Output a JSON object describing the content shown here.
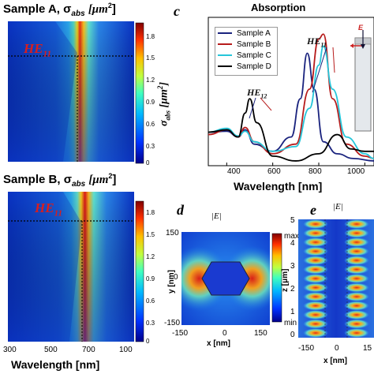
{
  "panel_a": {
    "title": "Sample A, σ",
    "title_sub": "abs",
    "title_unit": "[μm",
    "title_unit_sup": "2",
    "title_unit_close": "]",
    "mode_label": "HE",
    "mode_sub": "11",
    "colorbar_ticks": [
      "1.8",
      "1.5",
      "1.2",
      "0.9",
      "0.6",
      "0.3",
      "0"
    ]
  },
  "panel_b": {
    "title": "Sample B, σ",
    "title_sub": "abs",
    "title_unit": "[μm",
    "title_unit_sup": "2",
    "title_unit_close": "]",
    "mode_label": "HE",
    "mode_sub": "11",
    "colorbar_ticks": [
      "1.8",
      "1.5",
      "1.2",
      "0.9",
      "0.6",
      "0.3",
      "0"
    ],
    "x_ticks": [
      "300",
      "500",
      "700",
      "100"
    ],
    "x_label": "Wavelength [nm]"
  },
  "panel_c": {
    "letter": "c",
    "title": "Absorption",
    "y_label_main": "σ",
    "y_label_sub": "abs",
    "y_label_unit": "[μm",
    "y_label_sup": "2",
    "y_label_close": "]",
    "x_label": "Wavelength [nm]",
    "x_ticks": [
      "400",
      "600",
      "800",
      "1000"
    ],
    "he11": "HE",
    "he11_sub": "11",
    "he12": "HE",
    "he12_sub": "12",
    "e_label": "E"
  },
  "panel_d": {
    "letter": "d",
    "field_label": "|E|",
    "y_label": "y [nm]",
    "y_ticks": [
      "150",
      "0",
      "-150"
    ],
    "x_label": "x [nm]",
    "x_ticks": [
      "-150",
      "0",
      "150"
    ],
    "cb_max": "max",
    "cb_min": "min"
  },
  "panel_e": {
    "letter": "e",
    "field_label": "|E|",
    "y_label": "z [μm]",
    "y_ticks": [
      "5",
      "4",
      "3",
      "2",
      "1",
      "0"
    ],
    "x_label": "x [nm]",
    "x_ticks": [
      "-150",
      "0",
      "15"
    ]
  },
  "chart_data": {
    "type": "line",
    "title": "Absorption",
    "xlabel": "Wavelength [nm]",
    "ylabel": "σabs [μm2]",
    "xlim": [
      320,
      1040
    ],
    "series": [
      {
        "name": "Sample A",
        "color": "#1a237e",
        "x": [
          320,
          400,
          450,
          480,
          520,
          600,
          680,
          720,
          750,
          780,
          820,
          880,
          950,
          1040
        ],
        "y": [
          0.7,
          0.72,
          0.6,
          0.75,
          0.45,
          0.3,
          0.6,
          1.4,
          2.35,
          1.6,
          0.5,
          0.25,
          0.15,
          0.1
        ]
      },
      {
        "name": "Sample B",
        "color": "#b71c1c",
        "x": [
          320,
          400,
          450,
          480,
          520,
          600,
          700,
          760,
          800,
          820,
          860,
          920,
          1000,
          1040
        ],
        "y": [
          0.65,
          0.75,
          0.6,
          0.8,
          0.5,
          0.25,
          0.45,
          1.6,
          2.65,
          2.75,
          1.4,
          0.45,
          0.2,
          0.15
        ]
      },
      {
        "name": "Sample C",
        "color": "#26c6da",
        "x": [
          320,
          400,
          450,
          480,
          520,
          600,
          700,
          760,
          800,
          820,
          860,
          920,
          1000,
          1040
        ],
        "y": [
          0.7,
          0.78,
          0.62,
          0.72,
          0.5,
          0.3,
          0.4,
          1.2,
          2.1,
          2.5,
          1.6,
          0.6,
          0.25,
          0.15
        ]
      },
      {
        "name": "Sample D",
        "color": "#000000",
        "x": [
          320,
          400,
          450,
          480,
          500,
          530,
          600,
          700,
          800,
          880,
          940,
          1000,
          1040
        ],
        "y": [
          0.7,
          0.75,
          0.6,
          1.1,
          1.4,
          0.9,
          0.2,
          0.1,
          0.25,
          0.65,
          0.35,
          0.3,
          0.3
        ]
      }
    ]
  }
}
